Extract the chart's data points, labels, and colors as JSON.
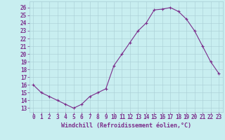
{
  "x": [
    0,
    1,
    2,
    3,
    4,
    5,
    6,
    7,
    8,
    9,
    10,
    11,
    12,
    13,
    14,
    15,
    16,
    17,
    18,
    19,
    20,
    21,
    22,
    23
  ],
  "y": [
    16,
    15,
    14.5,
    14,
    13.5,
    13,
    13.5,
    14.5,
    15,
    15.5,
    18.5,
    20,
    21.5,
    23,
    24,
    25.7,
    25.8,
    26,
    25.5,
    24.5,
    23,
    21,
    19,
    17.5
  ],
  "xlim": [
    -0.5,
    23.5
  ],
  "ylim_min": 12.5,
  "ylim_max": 26.8,
  "yticks": [
    13,
    14,
    15,
    16,
    17,
    18,
    19,
    20,
    21,
    22,
    23,
    24,
    25,
    26
  ],
  "xticks": [
    0,
    1,
    2,
    3,
    4,
    5,
    6,
    7,
    8,
    9,
    10,
    11,
    12,
    13,
    14,
    15,
    16,
    17,
    18,
    19,
    20,
    21,
    22,
    23
  ],
  "line_color": "#7b2d8b",
  "bg_color": "#c8eef0",
  "grid_color": "#a8cdd4",
  "xlabel": "Windchill (Refroidissement éolien,°C)",
  "tick_color": "#7b2d8b",
  "xlabel_color": "#7b2d8b",
  "font_size": 5.5,
  "xlabel_font_size": 6.0,
  "marker_size": 3.0,
  "line_width": 0.8
}
